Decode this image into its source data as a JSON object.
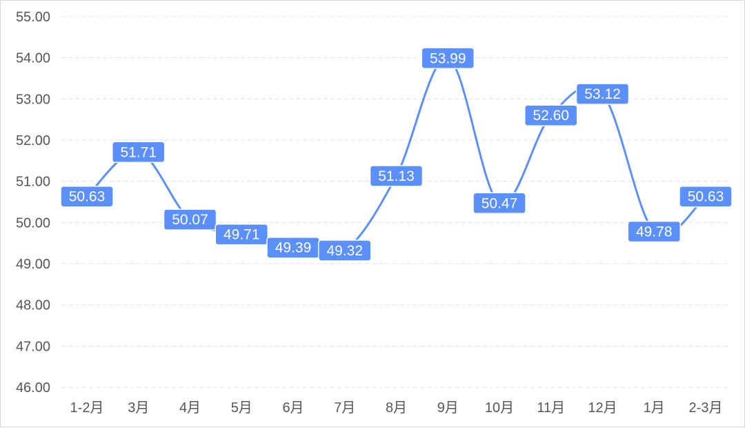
{
  "chart_data": {
    "type": "line",
    "categories": [
      "1-2月",
      "3月",
      "4月",
      "5月",
      "6月",
      "7月",
      "8月",
      "9月",
      "10月",
      "11月",
      "12月",
      "1月",
      "2-3月"
    ],
    "series": [
      {
        "values": [
          50.63,
          51.71,
          50.07,
          49.71,
          49.39,
          49.32,
          51.13,
          53.99,
          50.47,
          52.6,
          53.12,
          49.78,
          50.63
        ]
      }
    ],
    "data_labels": [
      "50.63",
      "51.71",
      "50.07",
      "49.71",
      "49.39",
      "49.32",
      "51.13",
      "53.99",
      "50.47",
      "52.60",
      "53.12",
      "49.78",
      "50.63"
    ],
    "yticks": [
      "46.00",
      "47.00",
      "48.00",
      "49.00",
      "50.00",
      "51.00",
      "52.00",
      "53.00",
      "54.00",
      "55.00"
    ],
    "ylim": [
      46,
      55
    ],
    "title": "",
    "xlabel": "",
    "ylabel": "",
    "grid": true,
    "line_smooth": true,
    "colors": {
      "line": "#5b8ff9",
      "label_bg": "#5b8ff9",
      "label_text": "#ffffff"
    }
  }
}
